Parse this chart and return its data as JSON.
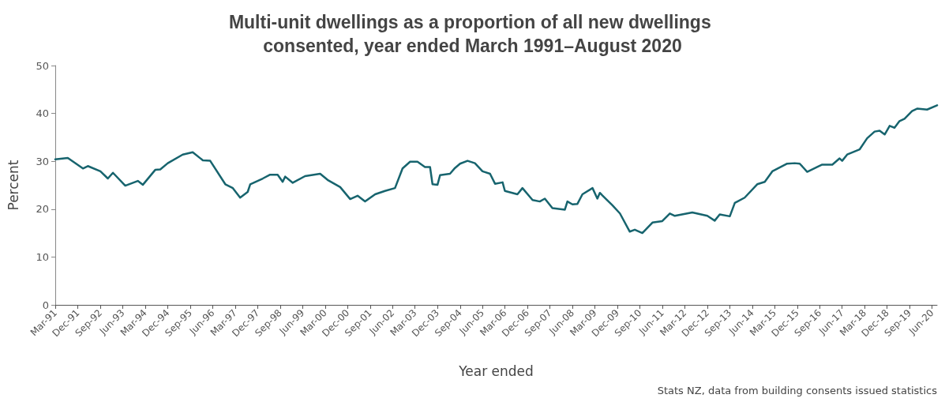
{
  "chart_data": {
    "type": "line",
    "title": "Multi-unit dwellings as a proportion of all new dwellings consented, year ended March 1991–August 2020",
    "xlabel": "Year ended",
    "ylabel": "Percent",
    "annotations": [
      "Stats NZ, data from building consents issued statistics"
    ],
    "x": [
      "1991-03",
      "1991-08",
      "1992-02",
      "1992-04",
      "1992-09",
      "1992-12",
      "1993-02",
      "1993-07",
      "1993-12",
      "1994-02",
      "1994-07",
      "1994-09",
      "1994-12",
      "1995-06",
      "1995-10",
      "1996-02",
      "1996-05",
      "1996-11",
      "1997-02",
      "1997-05",
      "1997-08",
      "1997-09",
      "1998-02",
      "1998-05",
      "1998-08",
      "1998-10",
      "1998-11",
      "1999-02",
      "1999-07",
      "2000-01",
      "2000-04",
      "2000-09",
      "2001-01",
      "2001-04",
      "2001-07",
      "2001-11",
      "2002-03",
      "2002-07",
      "2002-10",
      "2003-01",
      "2003-04",
      "2003-07",
      "2003-09",
      "2003-10",
      "2003-12",
      "2004-01",
      "2004-05",
      "2004-07",
      "2004-09",
      "2004-12",
      "2005-03",
      "2005-06",
      "2005-09",
      "2005-11",
      "2006-02",
      "2006-03",
      "2006-08",
      "2006-10",
      "2007-02",
      "2007-05",
      "2007-07",
      "2007-10",
      "2008-03",
      "2008-04",
      "2008-06",
      "2008-08",
      "2008-10",
      "2009-02",
      "2009-04",
      "2009-05",
      "2009-10",
      "2010-01",
      "2010-05",
      "2010-07",
      "2010-10",
      "2011-02",
      "2011-06",
      "2011-09",
      "2011-11",
      "2012-06",
      "2012-12",
      "2013-03",
      "2013-05",
      "2013-09",
      "2013-11",
      "2014-03",
      "2014-08",
      "2014-11",
      "2015-02",
      "2015-08",
      "2015-11",
      "2016-01",
      "2016-04",
      "2016-08",
      "2016-10",
      "2017-02",
      "2017-05",
      "2017-06",
      "2017-08",
      "2018-01",
      "2018-04",
      "2018-07",
      "2018-09",
      "2018-11",
      "2019-01",
      "2019-03",
      "2019-05",
      "2019-07",
      "2019-10",
      "2019-12",
      "2020-04",
      "2020-08"
    ],
    "series": [
      {
        "color": "#17646e",
        "values": [
          30.4,
          30.7,
          28.5,
          29.0,
          27.9,
          26.4,
          27.6,
          24.9,
          25.9,
          25.1,
          28.2,
          28.3,
          29.6,
          31.4,
          31.9,
          30.2,
          30.1,
          25.2,
          24.4,
          22.4,
          23.6,
          25.2,
          26.4,
          27.2,
          27.2,
          25.7,
          26.8,
          25.5,
          26.9,
          27.4,
          26.1,
          24.6,
          22.1,
          22.8,
          21.6,
          23.1,
          23.8,
          24.4,
          28.5,
          29.9,
          29.9,
          28.8,
          28.8,
          25.2,
          25.1,
          27.1,
          27.4,
          28.6,
          29.5,
          30.1,
          29.6,
          27.9,
          27.4,
          25.3,
          25.6,
          23.8,
          23.1,
          24.4,
          21.9,
          21.6,
          22.2,
          20.2,
          19.9,
          21.6,
          21.0,
          21.1,
          23.1,
          24.4,
          22.2,
          23.4,
          20.8,
          19.1,
          15.3,
          15.7,
          15.0,
          17.2,
          17.5,
          19.1,
          18.6,
          19.3,
          18.6,
          17.6,
          18.9,
          18.5,
          21.3,
          22.4,
          25.2,
          25.7,
          27.9,
          29.5,
          29.6,
          29.5,
          27.8,
          28.8,
          29.3,
          29.3,
          30.6,
          30.1,
          31.4,
          32.5,
          34.8,
          36.2,
          36.4,
          35.6,
          37.4,
          37.0,
          38.4,
          38.9,
          40.5,
          41.0,
          40.8,
          41.7
        ]
      }
    ],
    "xlim": [
      "1991-03",
      "2020-08"
    ],
    "xticks": [
      {
        "value": "1991-03",
        "label": "Mar-91"
      },
      {
        "value": "1991-12",
        "label": "Dec-91"
      },
      {
        "value": "1992-09",
        "label": "Sep-92"
      },
      {
        "value": "1993-06",
        "label": "Jun-93"
      },
      {
        "value": "1994-03",
        "label": "Mar-94"
      },
      {
        "value": "1994-12",
        "label": "Dec-94"
      },
      {
        "value": "1995-09",
        "label": "Sep-95"
      },
      {
        "value": "1996-06",
        "label": "Jun-96"
      },
      {
        "value": "1997-03",
        "label": "Mar-97"
      },
      {
        "value": "1997-12",
        "label": "Dec-97"
      },
      {
        "value": "1998-09",
        "label": "Sep-98"
      },
      {
        "value": "1999-06",
        "label": "Jun-99"
      },
      {
        "value": "2000-03",
        "label": "Mar-00"
      },
      {
        "value": "2000-12",
        "label": "Dec-00"
      },
      {
        "value": "2001-09",
        "label": "Sep-01"
      },
      {
        "value": "2002-06",
        "label": "Jun-02"
      },
      {
        "value": "2003-03",
        "label": "Mar-03"
      },
      {
        "value": "2003-12",
        "label": "Dec-03"
      },
      {
        "value": "2004-09",
        "label": "Sep-04"
      },
      {
        "value": "2005-06",
        "label": "Jun-05"
      },
      {
        "value": "2006-03",
        "label": "Mar-06"
      },
      {
        "value": "2006-12",
        "label": "Dec-06"
      },
      {
        "value": "2007-09",
        "label": "Sep-07"
      },
      {
        "value": "2008-06",
        "label": "Jun-08"
      },
      {
        "value": "2009-03",
        "label": "Mar-09"
      },
      {
        "value": "2009-12",
        "label": "Dec-09"
      },
      {
        "value": "2010-09",
        "label": "Sep-10"
      },
      {
        "value": "2011-06",
        "label": "Jun-11"
      },
      {
        "value": "2012-03",
        "label": "Mar-12"
      },
      {
        "value": "2012-12",
        "label": "Dec-12"
      },
      {
        "value": "2013-09",
        "label": "Sep-13"
      },
      {
        "value": "2014-06",
        "label": "Jun-14"
      },
      {
        "value": "2015-03",
        "label": "Mar-15"
      },
      {
        "value": "2015-12",
        "label": "Dec-15"
      },
      {
        "value": "2016-09",
        "label": "Sep-16"
      },
      {
        "value": "2017-06",
        "label": "Jun-17"
      },
      {
        "value": "2018-03",
        "label": "Mar-18"
      },
      {
        "value": "2018-12",
        "label": "Dec-18"
      },
      {
        "value": "2019-09",
        "label": "Sep-19"
      },
      {
        "value": "2020-06",
        "label": "Jun-20"
      }
    ],
    "ylim": [
      0,
      50
    ],
    "yticks": [
      0,
      10,
      20,
      30,
      40,
      50
    ],
    "grid": false,
    "marker": "none",
    "line_style": "solid"
  }
}
